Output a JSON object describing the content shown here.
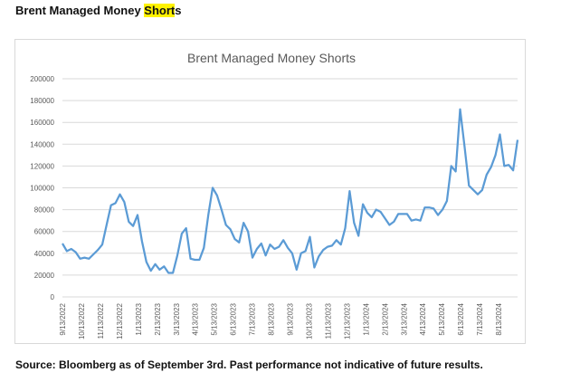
{
  "header": {
    "title_prefix": "Brent Managed Money ",
    "title_highlight": "Short",
    "title_suffix": "s"
  },
  "footer": {
    "source": "Source: Bloomberg as of September 3rd. Past performance not indicative of future results."
  },
  "colors": {
    "series": "#5b9bd5",
    "grid": "#d9d9d9",
    "highlight": "#fff200"
  },
  "chart_data": {
    "type": "line",
    "title": "Brent Managed Money Shorts",
    "xlabel": "",
    "ylabel": "",
    "ylim": [
      0,
      200000
    ],
    "yticks": [
      0,
      20000,
      40000,
      60000,
      80000,
      100000,
      120000,
      140000,
      160000,
      180000,
      200000
    ],
    "grid": true,
    "legend": "none",
    "xtick_labels": [
      "9/13/2022",
      "10/13/2022",
      "11/13/2022",
      "12/13/2022",
      "1/13/2023",
      "2/13/2023",
      "3/13/2023",
      "4/13/2023",
      "5/13/2023",
      "6/13/2023",
      "7/13/2023",
      "8/13/2023",
      "9/13/2023",
      "10/13/2023",
      "11/13/2023",
      "12/13/2023",
      "1/13/2024",
      "2/13/2024",
      "3/13/2024",
      "4/13/2024",
      "5/13/2024",
      "6/13/2024",
      "7/13/2024",
      "8/13/2024"
    ],
    "series": [
      {
        "values": [
          49000,
          42000,
          44000,
          41000,
          35000,
          36000,
          35000,
          39000,
          43000,
          48000,
          66000,
          84000,
          86000,
          94000,
          87000,
          69000,
          65000,
          75000,
          51000,
          32000,
          24000,
          30000,
          25000,
          28000,
          22000,
          22000,
          38000,
          58000,
          63000,
          35000,
          34000,
          34000,
          45000,
          75000,
          100000,
          93000,
          80000,
          66000,
          62000,
          53000,
          50000,
          68000,
          60000,
          36000,
          44000,
          49000,
          38000,
          48000,
          44000,
          46000,
          52000,
          45000,
          40000,
          25000,
          40000,
          42000,
          55000,
          27000,
          37000,
          43000,
          46000,
          47000,
          52000,
          48000,
          63000,
          97000,
          68000,
          56000,
          85000,
          77000,
          73000,
          80000,
          78000,
          72000,
          66000,
          69000,
          76000,
          76000,
          76000,
          70000,
          71000,
          70000,
          82000,
          82000,
          81000,
          75000,
          80000,
          88000,
          120000,
          115000,
          172000,
          138000,
          102000,
          98000,
          94000,
          98000,
          112000,
          119000,
          130000,
          149000,
          120000,
          121000,
          116000,
          144000
        ]
      }
    ]
  }
}
